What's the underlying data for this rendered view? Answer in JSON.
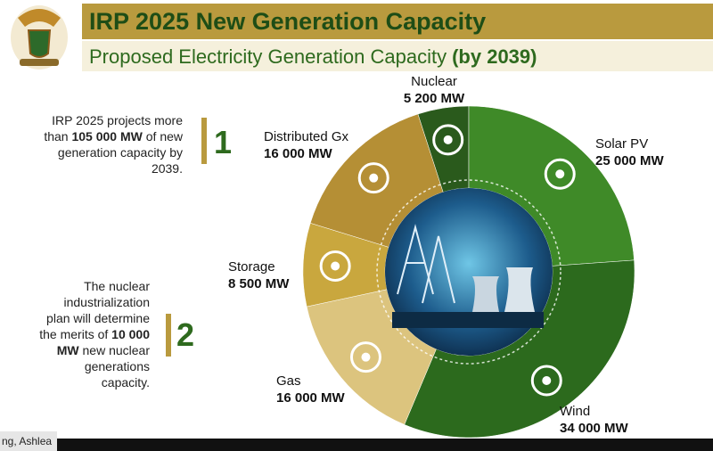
{
  "header": {
    "title": "IRP 2025 New Generation Capacity",
    "subtitle": "Proposed Electricity Generation Capacity",
    "subtitle_emphasis": "(by 2039)"
  },
  "notes": [
    {
      "number": "1",
      "lines": [
        [
          "IRP 2025 projects more"
        ],
        [
          "than ",
          "105 000 MW",
          " of new"
        ],
        [
          "generation capacity by"
        ],
        [
          "2039."
        ]
      ]
    },
    {
      "number": "2",
      "lines": [
        [
          "The nuclear"
        ],
        [
          "industrialization"
        ],
        [
          "plan will determine"
        ],
        [
          "the merits of ",
          "10 000"
        ],
        [
          "MW",
          " new nuclear"
        ],
        [
          "generations"
        ],
        [
          "capacity."
        ]
      ]
    }
  ],
  "participant": "ng, Ashlea",
  "chart_data": {
    "type": "pie",
    "donut": true,
    "categories": [
      "Nuclear",
      "Solar PV",
      "Wind",
      "Gas",
      "Storage",
      "Distributed Gx"
    ],
    "values": [
      5200,
      25000,
      34000,
      16000,
      8500,
      16000
    ],
    "value_labels": [
      "5 200 MW",
      "25 000 MW",
      "34 000 MW",
      "16 000 MW",
      "8 500 MW",
      "16 000 MW"
    ],
    "colors": [
      "#2a5a1c",
      "#3f8a28",
      "#2c6a1d",
      "#dcc47e",
      "#c9a73e",
      "#b58f35"
    ]
  }
}
